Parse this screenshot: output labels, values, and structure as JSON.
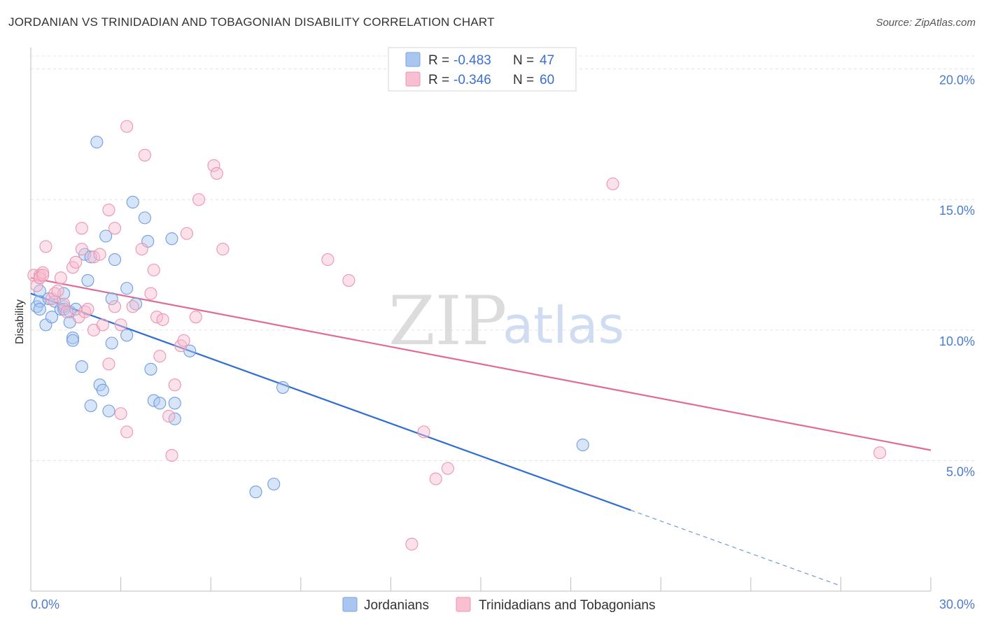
{
  "header": {
    "title": "JORDANIAN VS TRINIDADIAN AND TOBAGONIAN DISABILITY CORRELATION CHART",
    "source": "Source: ZipAtlas.com"
  },
  "watermark": {
    "zip": "ZIP",
    "atlas": "atlas"
  },
  "legend_top": [
    {
      "r_label": "R =",
      "r_value": "-0.483",
      "n_label": "N =",
      "n_value": "47",
      "color": "#a9c6f0",
      "stroke": "#7aa3e0"
    },
    {
      "r_label": "R =",
      "r_value": "-0.346",
      "n_label": "N =",
      "n_value": "60",
      "color": "#f7bfd0",
      "stroke": "#ec94b0"
    }
  ],
  "legend_bottom": [
    {
      "label": "Jordanians",
      "color": "#a9c6f0",
      "stroke": "#7aa3e0"
    },
    {
      "label": "Trinidadians and Tobagonians",
      "color": "#f7bfd0",
      "stroke": "#ec94b0"
    }
  ],
  "chart_data": {
    "type": "scatter",
    "title": "JORDANIAN VS TRINIDADIAN AND TOBAGONIAN DISABILITY CORRELATION CHART",
    "xlabel": "",
    "ylabel": "Disability",
    "xlim": [
      0,
      30
    ],
    "ylim": [
      0,
      20.5
    ],
    "x_tick_labels": [
      "0.0%",
      "30.0%"
    ],
    "y_ticks": [
      5,
      10,
      15,
      20
    ],
    "y_tick_labels": [
      "5.0%",
      "10.0%",
      "15.0%",
      "20.0%"
    ],
    "grid": true,
    "series": [
      {
        "name": "Jordanians",
        "color": "#6f9ee0",
        "fill": "#a9c6f0",
        "line_color": "#2f6fd0",
        "trend": {
          "x0": 0,
          "y0": 11.4,
          "x1": 20.0,
          "y1": 3.1,
          "dash_to_x": 27.0,
          "dash_to_y": 0.2
        },
        "points": [
          [
            0.2,
            10.9
          ],
          [
            0.3,
            11.1
          ],
          [
            0.3,
            11.5
          ],
          [
            0.3,
            10.8
          ],
          [
            0.5,
            10.2
          ],
          [
            0.6,
            11.2
          ],
          [
            0.7,
            10.5
          ],
          [
            0.8,
            11.1
          ],
          [
            1.0,
            10.8
          ],
          [
            1.1,
            10.9
          ],
          [
            1.1,
            10.8
          ],
          [
            1.1,
            11.4
          ],
          [
            1.3,
            10.7
          ],
          [
            1.3,
            10.3
          ],
          [
            1.4,
            9.7
          ],
          [
            1.4,
            9.6
          ],
          [
            1.5,
            10.8
          ],
          [
            1.7,
            8.6
          ],
          [
            1.8,
            12.9
          ],
          [
            1.9,
            11.9
          ],
          [
            2.0,
            12.8
          ],
          [
            2.0,
            7.1
          ],
          [
            2.2,
            17.2
          ],
          [
            2.3,
            7.9
          ],
          [
            2.4,
            7.7
          ],
          [
            2.5,
            13.6
          ],
          [
            2.6,
            6.9
          ],
          [
            2.7,
            11.2
          ],
          [
            2.7,
            9.5
          ],
          [
            2.8,
            12.7
          ],
          [
            3.2,
            11.6
          ],
          [
            3.2,
            9.8
          ],
          [
            3.4,
            14.9
          ],
          [
            3.5,
            11.0
          ],
          [
            3.8,
            14.3
          ],
          [
            3.9,
            13.4
          ],
          [
            4.0,
            8.5
          ],
          [
            4.1,
            7.3
          ],
          [
            4.3,
            7.2
          ],
          [
            4.7,
            13.5
          ],
          [
            4.8,
            6.6
          ],
          [
            4.8,
            7.2
          ],
          [
            5.3,
            9.2
          ],
          [
            7.5,
            3.8
          ],
          [
            8.1,
            4.1
          ],
          [
            8.4,
            7.8
          ],
          [
            18.4,
            5.6
          ]
        ]
      },
      {
        "name": "Trinidadians and Tobagonians",
        "color": "#ec94b0",
        "fill": "#f7bfd0",
        "line_color": "#e06a98",
        "trend": {
          "x0": 0,
          "y0": 12.0,
          "x1": 30.0,
          "y1": 5.4
        },
        "points": [
          [
            0.1,
            12.1
          ],
          [
            0.2,
            11.7
          ],
          [
            0.3,
            12.0
          ],
          [
            0.3,
            12.1
          ],
          [
            0.3,
            12.0
          ],
          [
            0.4,
            12.2
          ],
          [
            0.4,
            12.1
          ],
          [
            0.5,
            13.2
          ],
          [
            0.7,
            11.2
          ],
          [
            0.8,
            11.4
          ],
          [
            0.9,
            11.5
          ],
          [
            1.0,
            12.0
          ],
          [
            1.1,
            11.0
          ],
          [
            1.2,
            10.7
          ],
          [
            1.4,
            12.4
          ],
          [
            1.5,
            12.6
          ],
          [
            1.6,
            10.5
          ],
          [
            1.7,
            13.1
          ],
          [
            1.7,
            13.9
          ],
          [
            1.8,
            10.7
          ],
          [
            1.9,
            10.8
          ],
          [
            2.1,
            12.8
          ],
          [
            2.1,
            10.0
          ],
          [
            2.3,
            12.9
          ],
          [
            2.4,
            10.2
          ],
          [
            2.6,
            14.6
          ],
          [
            2.6,
            8.7
          ],
          [
            2.8,
            13.9
          ],
          [
            2.8,
            10.9
          ],
          [
            3.0,
            10.2
          ],
          [
            3.0,
            6.8
          ],
          [
            3.2,
            6.1
          ],
          [
            3.2,
            17.8
          ],
          [
            3.4,
            10.9
          ],
          [
            3.7,
            13.1
          ],
          [
            3.8,
            16.7
          ],
          [
            4.0,
            11.4
          ],
          [
            4.1,
            12.3
          ],
          [
            4.2,
            10.5
          ],
          [
            4.3,
            9.0
          ],
          [
            4.4,
            10.4
          ],
          [
            4.6,
            6.7
          ],
          [
            4.7,
            5.2
          ],
          [
            4.8,
            7.9
          ],
          [
            5.0,
            9.4
          ],
          [
            5.1,
            9.6
          ],
          [
            5.2,
            13.7
          ],
          [
            5.5,
            10.5
          ],
          [
            5.6,
            15.0
          ],
          [
            6.1,
            16.3
          ],
          [
            6.2,
            16.0
          ],
          [
            6.4,
            13.1
          ],
          [
            9.9,
            12.7
          ],
          [
            10.6,
            11.9
          ],
          [
            12.7,
            1.8
          ],
          [
            13.1,
            6.1
          ],
          [
            13.5,
            4.3
          ],
          [
            13.9,
            4.7
          ],
          [
            19.4,
            15.6
          ],
          [
            28.3,
            5.3
          ]
        ]
      }
    ]
  }
}
